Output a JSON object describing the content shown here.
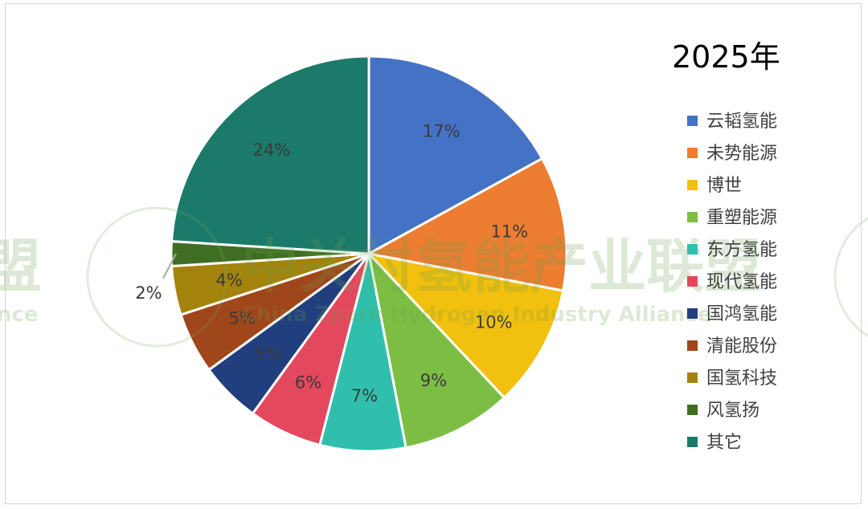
{
  "chart_data": {
    "type": "pie",
    "title": "2025年",
    "legend_position": "right",
    "slices": [
      {
        "name": "云韬氢能",
        "value": 17,
        "label": "17%",
        "color": "#4472C4",
        "label_color": "#3a3a3a"
      },
      {
        "name": "未势能源",
        "value": 11,
        "label": "11%",
        "color": "#ED7D31",
        "label_color": "#3a3a3a"
      },
      {
        "name": "博世",
        "value": 10,
        "label": "10%",
        "color": "#F2C00F",
        "label_color": "#3a3a3a"
      },
      {
        "name": "重塑能源",
        "value": 9,
        "label": "9%",
        "color": "#7CBE44",
        "label_color": "#3a3a3a"
      },
      {
        "name": "东方氢能",
        "value": 7,
        "label": "7%",
        "color": "#30BFAD",
        "label_color": "#3a3a3a"
      },
      {
        "name": "现代氢能",
        "value": 6,
        "label": "6%",
        "color": "#E4485E",
        "label_color": "#3a3a3a"
      },
      {
        "name": "国鸿氢能",
        "value": 5,
        "label": "5%",
        "color": "#213F7E",
        "label_color": "#3a3a3a"
      },
      {
        "name": "清能股份",
        "value": 5,
        "label": "5%",
        "color": "#A0461B",
        "label_color": "#3a3a3a"
      },
      {
        "name": "国氢科技",
        "value": 4,
        "label": "4%",
        "color": "#A3830C",
        "label_color": "#3a3a3a"
      },
      {
        "name": "风氢扬",
        "value": 2,
        "label": "2%",
        "color": "#3F6E22",
        "label_color": "#3a3a3a"
      },
      {
        "name": "其它",
        "value": 24,
        "label": "24%",
        "color": "#1C7A6B",
        "label_color": "#3a3a3a"
      }
    ]
  },
  "watermark": {
    "text_cn": "中关村氢能产业联盟",
    "text_en": "China Zpark Hydrogen Industry Alliance",
    "text_left_cn": "盟",
    "text_left_en": "nce"
  }
}
